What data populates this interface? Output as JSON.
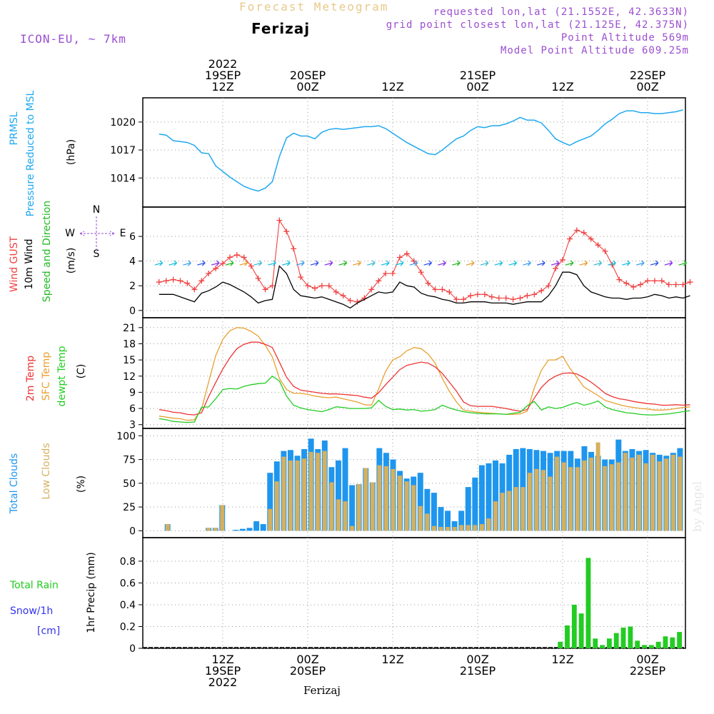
{
  "header": {
    "title": "Forecast Meteogram",
    "location": "Ferizaj",
    "model": "ICON-EU, ~ 7km",
    "requested": "requested lon,lat (21.1552E, 42.3633N)",
    "grid_point": "grid point closest lon,lat (21.125E, 42.375N)",
    "point_altitude": "Point Altitude 569m",
    "model_altitude": "Model Point Altitude 609.25m",
    "footer_location": "Ferizaj",
    "watermark": "by Angel"
  },
  "time_axis": {
    "top_labels": [
      {
        "lines": [
          "2022",
          "19SEP",
          "12Z"
        ],
        "tick": 0
      },
      {
        "lines": [
          "20SEP",
          "00Z"
        ],
        "tick": 1
      },
      {
        "lines": [
          "12Z"
        ],
        "tick": 2
      },
      {
        "lines": [
          "21SEP",
          "00Z"
        ],
        "tick": 3
      },
      {
        "lines": [
          "12Z"
        ],
        "tick": 4
      },
      {
        "lines": [
          "22SEP",
          "00Z"
        ],
        "tick": 5
      }
    ],
    "bottom_labels": [
      {
        "lines": [
          "12Z",
          "19SEP",
          "2022"
        ],
        "tick": 0
      },
      {
        "lines": [
          "00Z",
          "20SEP"
        ],
        "tick": 1
      },
      {
        "lines": [
          "12Z"
        ],
        "tick": 2
      },
      {
        "lines": [
          "00Z",
          "21SEP"
        ],
        "tick": 3
      },
      {
        "lines": [
          "12Z"
        ],
        "tick": 4
      },
      {
        "lines": [
          "00Z",
          "22SEP"
        ],
        "tick": 5
      }
    ]
  },
  "colors": {
    "pressure": "#1fa8f0",
    "gust": "#f04040",
    "wind": "#000000",
    "direction_label": "#22bb22",
    "temp": "#ee3333",
    "sfc_temp": "#e8a030",
    "dewpt": "#22cc22",
    "total_clouds": "#1e96ee",
    "low_clouds": "#d4b060",
    "rain": "#22cc22",
    "snow": "#3333ee",
    "compass": "#9b4fd0"
  },
  "panels": {
    "pressure": {
      "labels": [
        "PRMSL",
        "Pressure Reduced to MSL"
      ],
      "unit": "(hPa)"
    },
    "wind": {
      "labels": [
        "Wind GUST",
        "10m Wind",
        "Speed and Direction"
      ],
      "unit": "(m/s)",
      "compass": {
        "n": "N",
        "s": "S",
        "w": "W",
        "e": "E"
      }
    },
    "temp": {
      "labels": [
        "2m Temp",
        "SFC Temp",
        "dewpt Temp"
      ],
      "unit": "(C)"
    },
    "clouds": {
      "labels": [
        "Total Clouds",
        "Low Clouds"
      ],
      "unit": "(%)"
    },
    "precip": {
      "labels": [
        "Total  Rain",
        "Snow/1h",
        "[cm]"
      ],
      "unit": "1hr Precip (mm)"
    }
  },
  "chart_data": [
    {
      "type": "line",
      "title": "PRMSL Pressure Reduced to MSL",
      "ylabel": "(hPa)",
      "ylim": [
        1011.8,
        1021.6
      ],
      "yticks": [
        1014,
        1017,
        1020
      ],
      "x_start_hours": -9,
      "x_step_hours": 1,
      "series": [
        {
          "name": "PRMSL",
          "values": [
            1018.7,
            1018.6,
            1018.0,
            1017.9,
            1017.8,
            1017.5,
            1016.7,
            1016.6,
            1015.3,
            1014.7,
            1014.1,
            1013.6,
            1013.1,
            1012.8,
            1012.6,
            1012.9,
            1013.6,
            1016.3,
            1018.3,
            1018.8,
            1018.5,
            1018.5,
            1018.2,
            1018.9,
            1019.2,
            1019.3,
            1019.2,
            1019.3,
            1019.4,
            1019.5,
            1019.5,
            1019.6,
            1019.3,
            1018.8,
            1018.3,
            1017.8,
            1017.4,
            1017.0,
            1016.6,
            1016.5,
            1017.0,
            1017.6,
            1018.2,
            1018.5,
            1019.1,
            1019.5,
            1019.4,
            1019.6,
            1019.6,
            1019.8,
            1020.1,
            1020.5,
            1020.2,
            1020.2,
            1019.9,
            1019.1,
            1018.2,
            1017.8,
            1017.5,
            1017.9,
            1018.2,
            1018.5,
            1019.1,
            1019.8,
            1020.3,
            1020.9,
            1021.2,
            1021.2,
            1021.0,
            1021.0,
            1020.9,
            1020.9,
            1021.0,
            1021.1,
            1021.3
          ]
        }
      ]
    },
    {
      "type": "line",
      "title": "Wind GUST / 10m Wind Speed and Direction",
      "ylabel": "(m/s)",
      "ylim": [
        -0.3,
        7.8
      ],
      "yticks": [
        0,
        2,
        4,
        6
      ],
      "x_start_hours": -9,
      "x_step_hours": 1,
      "series": [
        {
          "name": "Wind GUST",
          "values": [
            2.3,
            2.4,
            2.5,
            2.4,
            2.2,
            1.7,
            2.4,
            3.0,
            3.4,
            3.8,
            4.3,
            4.5,
            4.3,
            3.6,
            2.6,
            1.7,
            2.0,
            7.3,
            6.4,
            5.0,
            2.7,
            2.0,
            1.8,
            2.0,
            2.0,
            1.5,
            1.2,
            0.8,
            0.7,
            1.0,
            1.7,
            2.4,
            3.0,
            3.0,
            4.3,
            4.6,
            4.0,
            3.1,
            2.2,
            1.7,
            1.7,
            1.5,
            0.9,
            0.9,
            1.2,
            1.3,
            1.3,
            1.1,
            1.0,
            1.0,
            0.9,
            1.0,
            1.2,
            1.3,
            1.6,
            2.0,
            3.4,
            4.1,
            5.8,
            6.5,
            6.3,
            5.8,
            5.3,
            4.8,
            3.7,
            2.5,
            2.2,
            1.9,
            2.1,
            2.4,
            2.4,
            2.4,
            2.1,
            2.1,
            2.1,
            2.3
          ]
        },
        {
          "name": "10m Wind",
          "values": [
            1.3,
            1.3,
            1.3,
            1.1,
            0.9,
            0.7,
            1.4,
            1.6,
            1.9,
            2.3,
            2.1,
            1.8,
            1.5,
            1.1,
            0.6,
            0.8,
            0.9,
            3.6,
            3.0,
            1.7,
            1.2,
            1.1,
            1.0,
            1.1,
            0.9,
            0.7,
            0.5,
            0.2,
            0.6,
            0.9,
            1.2,
            1.5,
            1.4,
            1.5,
            2.3,
            2.0,
            1.9,
            1.4,
            1.2,
            1.1,
            0.9,
            0.8,
            0.6,
            0.6,
            0.7,
            0.7,
            0.7,
            0.6,
            0.6,
            0.6,
            0.5,
            0.6,
            0.7,
            0.7,
            0.7,
            1.2,
            2.0,
            3.1,
            3.1,
            2.9,
            2.0,
            1.5,
            1.3,
            1.1,
            1.0,
            1.0,
            0.9,
            1.0,
            1.0,
            1.1,
            1.3,
            1.2,
            1.0,
            1.1,
            1.0,
            1.2
          ]
        }
      ]
    },
    {
      "type": "line",
      "title": "2m Temp / SFC Temp / dewpt Temp",
      "ylabel": "(C)",
      "ylim": [
        2.7,
        21.9
      ],
      "yticks": [
        3,
        6,
        9,
        12,
        15,
        18,
        21
      ],
      "x_start_hours": -9,
      "x_step_hours": 1,
      "series": [
        {
          "name": "2m Temp",
          "values": [
            5.8,
            5.6,
            5.3,
            5.2,
            4.9,
            4.8,
            5.2,
            8.2,
            10.8,
            13.3,
            15.4,
            17.1,
            17.9,
            18.3,
            18.3,
            17.9,
            17.3,
            14.6,
            11.8,
            10.1,
            9.4,
            9.2,
            9.0,
            8.8,
            8.7,
            8.7,
            8.6,
            8.5,
            8.4,
            8.1,
            7.9,
            8.9,
            10.4,
            11.8,
            13.2,
            14.0,
            14.3,
            14.6,
            14.4,
            13.7,
            12.5,
            10.9,
            9.2,
            7.2,
            6.5,
            6.4,
            6.4,
            6.4,
            6.2,
            6.0,
            5.7,
            5.5,
            5.8,
            7.9,
            9.9,
            11.2,
            12.0,
            12.5,
            12.6,
            12.4,
            11.7,
            10.9,
            9.9,
            8.8,
            8.2,
            7.8,
            7.6,
            7.3,
            7.1,
            6.9,
            6.8,
            6.6,
            6.6,
            6.7,
            6.6,
            6.7
          ]
        },
        {
          "name": "SFC Temp",
          "values": [
            4.6,
            4.4,
            4.2,
            4.1,
            3.8,
            3.9,
            5.9,
            10.9,
            15.8,
            18.8,
            20.4,
            21.0,
            20.9,
            20.3,
            19.4,
            17.7,
            15.6,
            11.6,
            9.5,
            8.8,
            8.8,
            8.6,
            8.3,
            8.1,
            8.0,
            8.1,
            7.8,
            7.5,
            7.2,
            6.7,
            6.6,
            9.6,
            12.9,
            15.0,
            15.6,
            16.7,
            17.3,
            17.1,
            16.1,
            14.4,
            11.6,
            9.2,
            7.2,
            5.7,
            5.5,
            5.3,
            5.2,
            5.1,
            5.0,
            4.9,
            4.9,
            5.0,
            5.5,
            9.8,
            13.1,
            15.0,
            15.0,
            15.7,
            13.5,
            11.8,
            10.0,
            9.2,
            8.4,
            7.5,
            7.1,
            6.7,
            6.4,
            6.2,
            6.0,
            5.9,
            5.7,
            5.7,
            5.8,
            6.0,
            6.2,
            6.3
          ]
        },
        {
          "name": "dewpt Temp",
          "values": [
            4.1,
            3.9,
            3.6,
            3.5,
            3.4,
            3.5,
            6.2,
            6.3,
            7.8,
            9.5,
            9.7,
            9.6,
            10.1,
            10.4,
            10.6,
            10.7,
            12.0,
            11.1,
            8.3,
            6.6,
            6.1,
            5.8,
            5.6,
            5.4,
            5.8,
            6.3,
            6.2,
            6.0,
            6.0,
            6.0,
            6.1,
            7.5,
            6.4,
            5.8,
            5.9,
            5.7,
            5.8,
            5.5,
            5.6,
            5.8,
            6.6,
            6.1,
            5.7,
            5.4,
            5.2,
            5.1,
            5.0,
            5.0,
            5.0,
            4.9,
            5.1,
            5.3,
            6.5,
            7.3,
            5.7,
            6.3,
            6.0,
            6.2,
            6.7,
            7.1,
            6.6,
            6.9,
            7.4,
            6.3,
            5.8,
            5.5,
            5.2,
            5.1,
            4.9,
            4.8,
            4.8,
            4.9,
            5.0,
            5.2,
            5.4,
            5.6
          ]
        }
      ]
    },
    {
      "type": "bar",
      "title": "Total Clouds / Low Clouds",
      "ylabel": "(%)",
      "ylim": [
        -5,
        104
      ],
      "yticks": [
        0,
        25,
        50,
        75,
        100
      ],
      "x_start_hours": -9,
      "x_step_hours": 1,
      "series": [
        {
          "name": "Total Clouds",
          "values": [
            0,
            0,
            0,
            7,
            0,
            0,
            0,
            0,
            0,
            3,
            3,
            27,
            0,
            1,
            2,
            3,
            10,
            7,
            61,
            73,
            84,
            85,
            79,
            86,
            97,
            86,
            95,
            67,
            74,
            87,
            48,
            49,
            66,
            51,
            87,
            82,
            75,
            63,
            55,
            57,
            61,
            44,
            40,
            25,
            21,
            10,
            21,
            46,
            56,
            69,
            71,
            74,
            71,
            80,
            86,
            87,
            86,
            85,
            84,
            82,
            84,
            84,
            84,
            76,
            89,
            83,
            79,
            75,
            75,
            96,
            84,
            86,
            84,
            85,
            82,
            80,
            79,
            82,
            87
          ]
        },
        {
          "name": "Low Clouds",
          "values": [
            0,
            0,
            0,
            7,
            0,
            0,
            0,
            0,
            0,
            3,
            3,
            27,
            0,
            0,
            0,
            0,
            0,
            0,
            23,
            52,
            78,
            74,
            74,
            76,
            83,
            82,
            84,
            51,
            33,
            31,
            5,
            49,
            66,
            51,
            69,
            68,
            65,
            58,
            52,
            48,
            26,
            18,
            5,
            4,
            4,
            4,
            6,
            6,
            6,
            7,
            13,
            31,
            40,
            42,
            46,
            46,
            61,
            65,
            64,
            57,
            78,
            72,
            67,
            67,
            74,
            77,
            93,
            68,
            70,
            72,
            82,
            77,
            80,
            71,
            80,
            73,
            76,
            80,
            78
          ]
        }
      ]
    },
    {
      "type": "bar",
      "title": "1hr Precip (mm)",
      "ylabel": "1hr Precip (mm)",
      "ylim": [
        0,
        0.97
      ],
      "yticks": [
        0,
        0.2,
        0.4,
        0.6,
        0.8
      ],
      "x_start_hours": -9,
      "x_step_hours": 1,
      "series": [
        {
          "name": "Total Rain",
          "values": [
            0,
            0,
            0,
            0,
            0,
            0,
            0,
            0,
            0,
            0,
            0,
            0,
            0,
            0,
            0,
            0,
            0,
            0,
            0,
            0,
            0,
            0,
            0,
            0,
            0,
            0,
            0,
            0,
            0,
            0,
            0,
            0,
            0,
            0,
            0,
            0,
            0,
            0,
            0,
            0,
            0,
            0,
            0,
            0,
            0,
            0,
            0,
            0,
            0,
            0,
            0,
            0,
            0,
            0,
            0,
            0,
            0,
            0,
            0,
            0.06,
            0.21,
            0.4,
            0.32,
            0.83,
            0.09,
            0.03,
            0.09,
            0.14,
            0.19,
            0.2,
            0.07,
            0.03,
            0.03,
            0.06,
            0.11,
            0.1,
            0.15
          ]
        },
        {
          "name": "Snow/1h",
          "values": []
        }
      ]
    }
  ]
}
